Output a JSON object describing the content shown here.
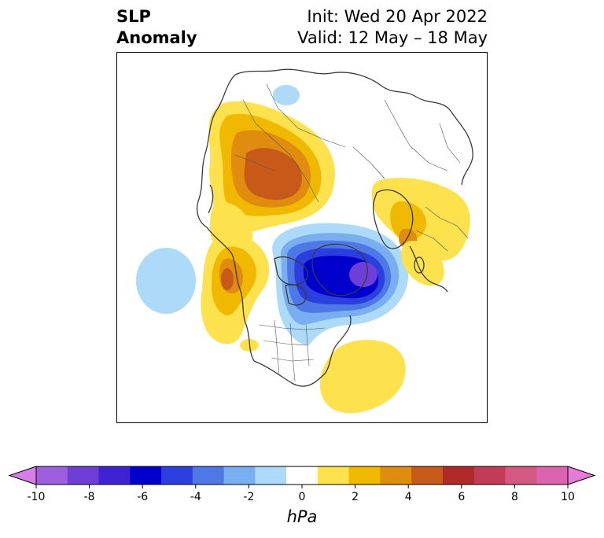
{
  "title": {
    "left_line1": "SLP",
    "left_line2": "Anomaly",
    "right_line1": "Init: Wed 20 Apr 2022",
    "right_line2": "Valid: 12 May – 18 May"
  },
  "colorbar": {
    "unit_label": "hPa",
    "tick_labels": [
      "-10",
      "-8",
      "-6",
      "-4",
      "-2",
      "0",
      "2",
      "4",
      "6",
      "8",
      "10"
    ],
    "levels": [
      -10,
      -9,
      -8,
      -7,
      -6,
      -5,
      -4,
      -3,
      -2,
      -1,
      1,
      2,
      3,
      4,
      5,
      6,
      7,
      8,
      9,
      10
    ],
    "colors": [
      "#d77ee8",
      "#9e5ee0",
      "#6e3ed6",
      "#3f21d6",
      "#0000cc",
      "#2a3fdd",
      "#4d78e6",
      "#79aef0",
      "#acdaf8",
      "#ffffff",
      "#fde14d",
      "#f1b800",
      "#e08c0e",
      "#c85a19",
      "#b12a2a",
      "#c33c57",
      "#d35982",
      "#dc63ad",
      "#e77ad8"
    ],
    "extend": "both"
  },
  "map": {
    "projection": "north-polar stereographic",
    "colors": {
      "neg_light": "#acdaf8",
      "neg_mid": "#79aef0",
      "neg_blue": "#4d78e6",
      "neg_deep": "#2a3fdd",
      "neg_core": "#0000cc",
      "neg_purple": "#6e3ed6",
      "pos_light": "#fde14d",
      "pos_mid": "#f1b800",
      "pos_orange": "#e08c0e",
      "pos_rust": "#c85a19"
    }
  }
}
